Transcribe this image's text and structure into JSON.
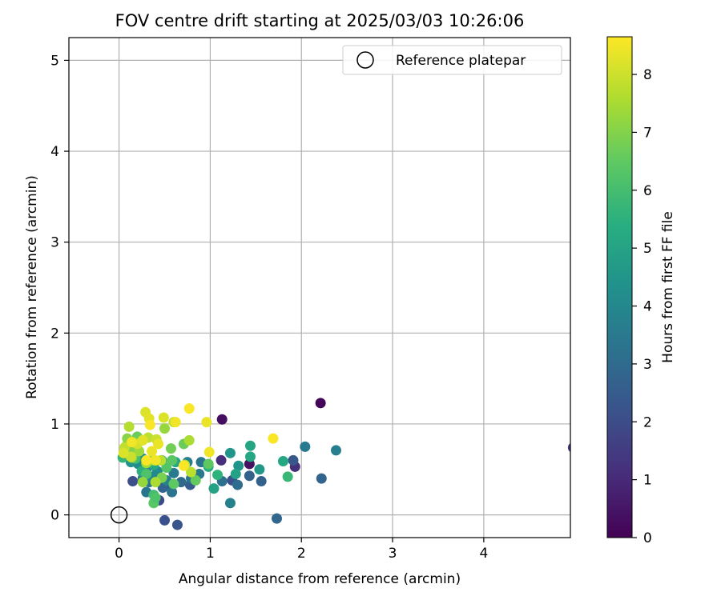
{
  "chart_data": {
    "type": "scatter",
    "title": "FOV centre drift starting at 2025/03/03 10:26:06",
    "xlabel": "Angular distance from reference (arcmin)",
    "ylabel": "Rotation from reference (arcmin)",
    "xlim": [
      -0.55,
      4.95
    ],
    "ylim": [
      -0.25,
      5.25
    ],
    "xticks": [
      0,
      1,
      2,
      3,
      4
    ],
    "yticks": [
      0,
      1,
      2,
      3,
      4,
      5
    ],
    "grid": true,
    "legend": {
      "position": "top-right",
      "entries": [
        "Reference platepar"
      ]
    },
    "reference_point": {
      "x": 0,
      "y": 0
    },
    "colorbar": {
      "label": "Hours from first FF file",
      "min": 0,
      "max": 8.65,
      "ticks": [
        0,
        1,
        2,
        3,
        4,
        5,
        6,
        7,
        8
      ],
      "colormap": "viridis"
    },
    "points": [
      {
        "x": 2.21,
        "y": 1.23,
        "c": 0.1
      },
      {
        "x": 1.13,
        "y": 1.05,
        "c": 0.3
      },
      {
        "x": 1.43,
        "y": 0.56,
        "c": 0.4
      },
      {
        "x": 1.93,
        "y": 0.53,
        "c": 1.2
      },
      {
        "x": 1.12,
        "y": 0.6,
        "c": 1.1
      },
      {
        "x": 4.98,
        "y": 0.74,
        "c": 1.5
      },
      {
        "x": 0.15,
        "y": 0.37,
        "c": 2.1
      },
      {
        "x": 0.44,
        "y": 0.16,
        "c": 2.0
      },
      {
        "x": 0.5,
        "y": -0.06,
        "c": 2.2
      },
      {
        "x": 0.64,
        "y": -0.11,
        "c": 2.3
      },
      {
        "x": 1.91,
        "y": 0.6,
        "c": 2.4
      },
      {
        "x": 1.24,
        "y": 0.38,
        "c": 2.2
      },
      {
        "x": 1.43,
        "y": 0.43,
        "c": 2.7
      },
      {
        "x": 1.56,
        "y": 0.37,
        "c": 2.7
      },
      {
        "x": 2.22,
        "y": 0.4,
        "c": 2.8
      },
      {
        "x": 1.73,
        "y": -0.04,
        "c": 2.9
      },
      {
        "x": 0.78,
        "y": 0.33,
        "c": 2.5
      },
      {
        "x": 0.55,
        "y": 0.32,
        "c": 2.6
      },
      {
        "x": 0.48,
        "y": 0.3,
        "c": 2.8
      },
      {
        "x": 0.4,
        "y": 0.43,
        "c": 2.6
      },
      {
        "x": 1.3,
        "y": 0.33,
        "c": 3.1
      },
      {
        "x": 1.13,
        "y": 0.37,
        "c": 3.2
      },
      {
        "x": 0.58,
        "y": 0.25,
        "c": 3.3
      },
      {
        "x": 0.3,
        "y": 0.25,
        "c": 3.4
      },
      {
        "x": 0.26,
        "y": 0.4,
        "c": 3.5
      },
      {
        "x": 0.33,
        "y": 0.36,
        "c": 3.5
      },
      {
        "x": 0.68,
        "y": 0.36,
        "c": 3.0
      },
      {
        "x": 0.79,
        "y": 0.4,
        "c": 3.4
      },
      {
        "x": 0.88,
        "y": 0.45,
        "c": 3.5
      },
      {
        "x": 2.04,
        "y": 0.75,
        "c": 3.6
      },
      {
        "x": 2.38,
        "y": 0.71,
        "c": 3.7
      },
      {
        "x": 1.22,
        "y": 0.13,
        "c": 3.8
      },
      {
        "x": 0.75,
        "y": 0.58,
        "c": 3.8
      },
      {
        "x": 0.9,
        "y": 0.58,
        "c": 3.4
      },
      {
        "x": 0.6,
        "y": 0.46,
        "c": 3.6
      },
      {
        "x": 0.52,
        "y": 0.38,
        "c": 3.8
      },
      {
        "x": 0.42,
        "y": 0.48,
        "c": 4.1
      },
      {
        "x": 0.36,
        "y": 0.42,
        "c": 4.0
      },
      {
        "x": 0.31,
        "y": 0.52,
        "c": 3.9
      },
      {
        "x": 0.21,
        "y": 0.56,
        "c": 4.2
      },
      {
        "x": 0.26,
        "y": 0.62,
        "c": 4.3
      },
      {
        "x": 0.13,
        "y": 0.58,
        "c": 4.4
      },
      {
        "x": 1.22,
        "y": 0.68,
        "c": 4.5
      },
      {
        "x": 1.31,
        "y": 0.54,
        "c": 4.5
      },
      {
        "x": 1.54,
        "y": 0.5,
        "c": 4.6
      },
      {
        "x": 1.04,
        "y": 0.29,
        "c": 5.0
      },
      {
        "x": 1.28,
        "y": 0.45,
        "c": 5.0
      },
      {
        "x": 1.44,
        "y": 0.76,
        "c": 5.1
      },
      {
        "x": 1.44,
        "y": 0.64,
        "c": 5.2
      },
      {
        "x": 1.8,
        "y": 0.59,
        "c": 5.2
      },
      {
        "x": 1.85,
        "y": 0.42,
        "c": 5.8
      },
      {
        "x": 0.98,
        "y": 0.53,
        "c": 5.4
      },
      {
        "x": 1.08,
        "y": 0.44,
        "c": 5.6
      },
      {
        "x": 0.62,
        "y": 0.58,
        "c": 5.2
      },
      {
        "x": 0.47,
        "y": 0.6,
        "c": 5.0
      },
      {
        "x": 0.38,
        "y": 0.55,
        "c": 5.3
      },
      {
        "x": 0.25,
        "y": 0.48,
        "c": 5.5
      },
      {
        "x": 0.04,
        "y": 0.63,
        "c": 5.7
      },
      {
        "x": 0.07,
        "y": 0.7,
        "c": 5.9
      },
      {
        "x": 0.1,
        "y": 0.66,
        "c": 6.0
      },
      {
        "x": 0.18,
        "y": 0.62,
        "c": 6.1
      },
      {
        "x": 0.3,
        "y": 0.45,
        "c": 6.2
      },
      {
        "x": 0.38,
        "y": 0.22,
        "c": 6.0
      },
      {
        "x": 0.38,
        "y": 0.13,
        "c": 6.4
      },
      {
        "x": 0.4,
        "y": 0.19,
        "c": 6.2
      },
      {
        "x": 0.52,
        "y": 0.52,
        "c": 6.3
      },
      {
        "x": 0.58,
        "y": 0.6,
        "c": 6.4
      },
      {
        "x": 0.6,
        "y": 0.34,
        "c": 6.5
      },
      {
        "x": 0.84,
        "y": 0.38,
        "c": 6.6
      },
      {
        "x": 0.98,
        "y": 0.56,
        "c": 6.5
      },
      {
        "x": 0.71,
        "y": 0.78,
        "c": 6.7
      },
      {
        "x": 0.57,
        "y": 0.73,
        "c": 6.8
      },
      {
        "x": 0.47,
        "y": 0.41,
        "c": 6.9
      },
      {
        "x": 0.36,
        "y": 0.6,
        "c": 6.9
      },
      {
        "x": 0.2,
        "y": 0.86,
        "c": 6.7
      },
      {
        "x": 0.16,
        "y": 0.8,
        "c": 7.0
      },
      {
        "x": 0.09,
        "y": 0.84,
        "c": 7.1
      },
      {
        "x": 0.08,
        "y": 0.76,
        "c": 7.2
      },
      {
        "x": 0.12,
        "y": 0.72,
        "c": 7.0
      },
      {
        "x": 0.14,
        "y": 0.63,
        "c": 7.3
      },
      {
        "x": 0.22,
        "y": 0.7,
        "c": 7.4
      },
      {
        "x": 0.3,
        "y": 0.57,
        "c": 7.5
      },
      {
        "x": 0.26,
        "y": 0.36,
        "c": 7.3
      },
      {
        "x": 0.4,
        "y": 0.36,
        "c": 7.6
      },
      {
        "x": 0.5,
        "y": 0.95,
        "c": 7.3
      },
      {
        "x": 0.77,
        "y": 0.82,
        "c": 7.6
      },
      {
        "x": 0.6,
        "y": 1.02,
        "c": 7.8
      },
      {
        "x": 0.11,
        "y": 0.97,
        "c": 7.7
      },
      {
        "x": 0.32,
        "y": 0.85,
        "c": 7.8
      },
      {
        "x": 0.46,
        "y": 0.6,
        "c": 7.8
      },
      {
        "x": 0.72,
        "y": 0.55,
        "c": 7.9
      },
      {
        "x": 0.79,
        "y": 0.47,
        "c": 7.8
      },
      {
        "x": 0.06,
        "y": 0.74,
        "c": 7.9
      },
      {
        "x": 0.13,
        "y": 0.64,
        "c": 8.0
      },
      {
        "x": 0.2,
        "y": 0.78,
        "c": 8.1
      },
      {
        "x": 0.29,
        "y": 1.13,
        "c": 8.2
      },
      {
        "x": 0.33,
        "y": 1.06,
        "c": 8.3
      },
      {
        "x": 0.49,
        "y": 1.07,
        "c": 8.2
      },
      {
        "x": 0.41,
        "y": 0.83,
        "c": 8.0
      },
      {
        "x": 0.36,
        "y": 0.7,
        "c": 8.4
      },
      {
        "x": 0.4,
        "y": 0.6,
        "c": 8.5
      },
      {
        "x": 0.3,
        "y": 0.6,
        "c": 8.6
      },
      {
        "x": 0.14,
        "y": 0.8,
        "c": 8.5
      },
      {
        "x": 0.26,
        "y": 0.82,
        "c": 8.3
      },
      {
        "x": 0.34,
        "y": 0.99,
        "c": 8.6
      },
      {
        "x": 0.62,
        "y": 1.02,
        "c": 8.5
      },
      {
        "x": 0.77,
        "y": 1.17,
        "c": 8.6
      },
      {
        "x": 0.96,
        "y": 1.02,
        "c": 8.4
      },
      {
        "x": 0.99,
        "y": 0.69,
        "c": 8.5
      },
      {
        "x": 0.71,
        "y": 0.54,
        "c": 8.6
      },
      {
        "x": 1.69,
        "y": 0.84,
        "c": 8.6
      },
      {
        "x": 0.05,
        "y": 0.68,
        "c": 8.2
      },
      {
        "x": 0.43,
        "y": 0.78,
        "c": 8.4
      }
    ]
  }
}
